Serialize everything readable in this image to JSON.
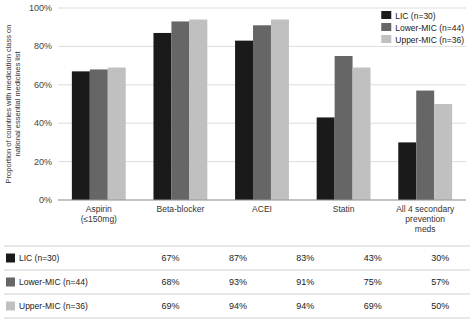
{
  "chart_data": {
    "type": "bar",
    "categories": [
      "Aspirin\n(≤150mg)",
      "Beta-blocker",
      "ACEI",
      "Statin",
      "All 4 secondary\nprevention\nmeds"
    ],
    "series": [
      {
        "name": "LIC (n=30)",
        "color": "#1a1a1a",
        "values": [
          67,
          87,
          83,
          43,
          30
        ],
        "value_labels": [
          "67%",
          "87%",
          "83%",
          "43%",
          "30%"
        ]
      },
      {
        "name": "Lower-MIC (n=44)",
        "color": "#666666",
        "values": [
          68,
          93,
          91,
          75,
          57
        ],
        "value_labels": [
          "68%",
          "93%",
          "91%",
          "75%",
          "57%"
        ]
      },
      {
        "name": "Upper-MIC (n=36)",
        "color": "#c0c0c0",
        "values": [
          69,
          94,
          94,
          69,
          50
        ],
        "value_labels": [
          "69%",
          "94%",
          "94%",
          "69%",
          "50%"
        ]
      }
    ],
    "y_label": "Proportion of countries with medication class on\nnational essential medicines list",
    "ylim": [
      0,
      100
    ],
    "yticks": [
      {
        "value": 0,
        "label": "0%"
      },
      {
        "value": 20,
        "label": "20%"
      },
      {
        "value": 40,
        "label": "40%"
      },
      {
        "value": 60,
        "label": "60%"
      },
      {
        "value": 80,
        "label": "80%"
      },
      {
        "value": 100,
        "label": "100%"
      }
    ],
    "grid": true,
    "legend": "upper right"
  }
}
